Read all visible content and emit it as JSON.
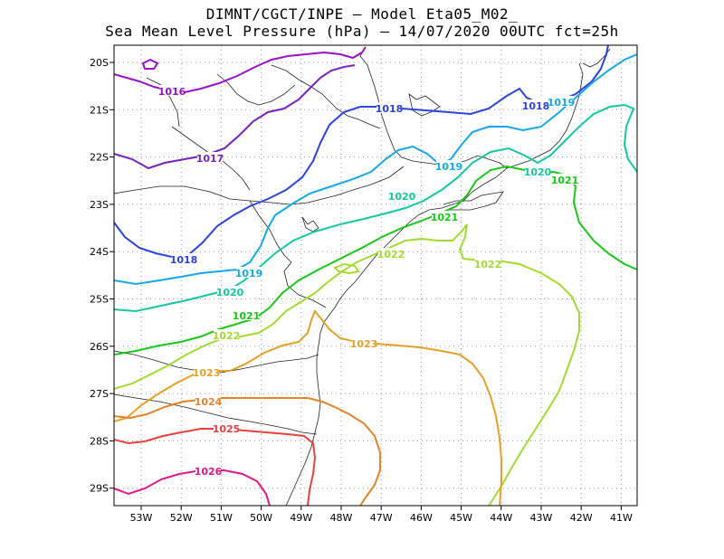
{
  "title_line1": "DIMNT/CGCT/INPE –  Model Eta05_M02_",
  "title_line2": "Sea Mean Level Pressure (hPa) – 14/07/2020 00UTC fct=25h",
  "axes": {
    "lon_labels": [
      "53W",
      "52W",
      "51W",
      "50W",
      "49W",
      "48W",
      "47W",
      "46W",
      "45W",
      "44W",
      "43W",
      "42W",
      "41W"
    ],
    "lat_labels": [
      "20S",
      "21S",
      "22S",
      "23S",
      "24S",
      "25S",
      "26S",
      "27S",
      "28S",
      "29S"
    ]
  },
  "chart_data": {
    "type": "contour",
    "variable": "Sea Mean Level Pressure (hPa)",
    "x_range": [
      -53.6,
      -40.5
    ],
    "y_range": [
      -29.4,
      -19.5
    ],
    "isobars": [
      {
        "value": "1016",
        "color": "#9a10c8"
      },
      {
        "value": "1017",
        "color": "#7a22c0"
      },
      {
        "value": "1018",
        "color": "#2a44e0"
      },
      {
        "value": "1019",
        "color": "#14a8e8"
      },
      {
        "value": "1020",
        "color": "#12c8a0"
      },
      {
        "value": "1021",
        "color": "#18c818"
      },
      {
        "value": "1022",
        "color": "#a0dc30"
      },
      {
        "value": "1023",
        "color": "#e6a028"
      },
      {
        "value": "1024",
        "color": "#e68228"
      },
      {
        "value": "1025",
        "color": "#e8403c"
      },
      {
        "value": "1026",
        "color": "#e0188c"
      }
    ]
  }
}
